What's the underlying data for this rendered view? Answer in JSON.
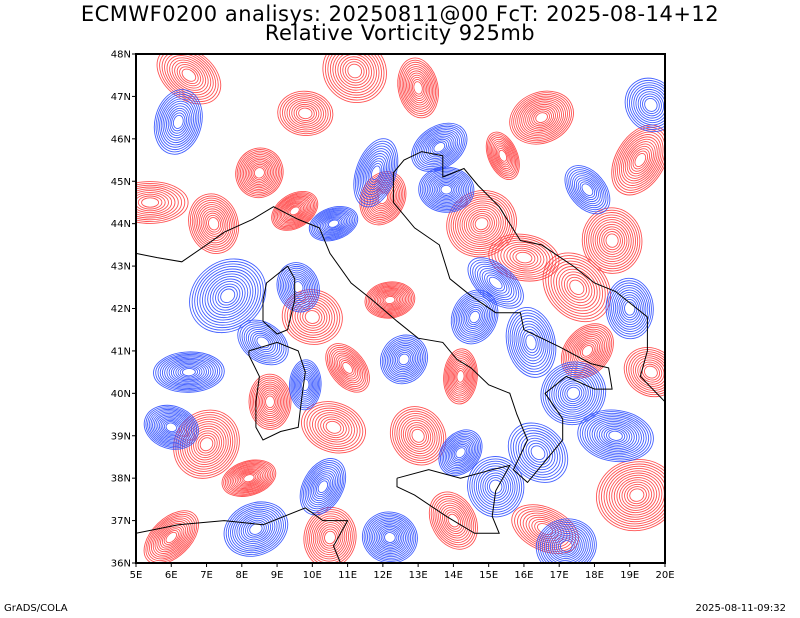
{
  "title_line1": "ECMWF0200 analisys: 20250811@00 FcT: 2025-08-14+12",
  "title_line2": "Relative Vorticity 925mb",
  "lon_labels": [
    "5E",
    "6E",
    "7E",
    "8E",
    "9E",
    "10E",
    "11E",
    "12E",
    "13E",
    "14E",
    "15E",
    "16E",
    "17E",
    "18E",
    "19E",
    "20E"
  ],
  "lat_labels": [
    "48N",
    "47N",
    "46N",
    "45N",
    "44N",
    "43N",
    "42N",
    "41N",
    "40N",
    "39N",
    "38N",
    "37N",
    "36N"
  ],
  "map": {
    "lon_range": [
      5,
      20
    ],
    "lat_range": [
      36,
      48
    ],
    "positive_color": "#ff4040",
    "negative_color": "#3050ff",
    "coast_color": "#000000"
  },
  "footer_left": "GrADS/COLA",
  "footer_right": "2025-08-11-09:32"
}
